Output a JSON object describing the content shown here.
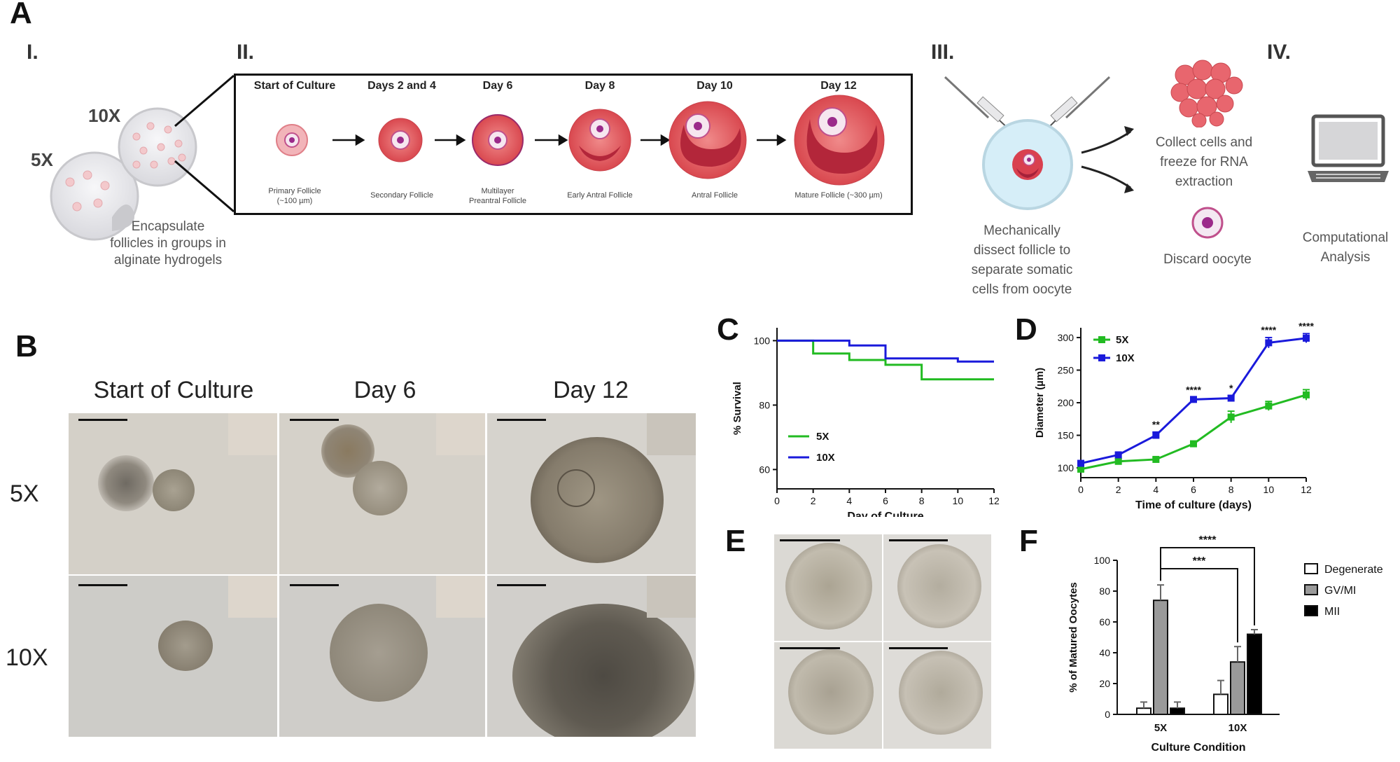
{
  "panels": {
    "A": "A",
    "B": "B",
    "C": "C",
    "D": "D",
    "E": "E",
    "F": "F"
  },
  "section_a": {
    "roman": {
      "i": "I.",
      "ii": "II.",
      "iii": "III.",
      "iv": "IV."
    },
    "dish_labels": {
      "five": "5X",
      "ten": "10X"
    },
    "encapsulate_text": [
      "Encapsulate",
      "follicles in groups in",
      "alginate hydrogels"
    ],
    "stages": [
      {
        "title": "Start of Culture",
        "sub": [
          "Primary Follicle",
          "(~100 µm)"
        ]
      },
      {
        "title": "Days 2 and 4",
        "sub": [
          "Secondary Follicle"
        ]
      },
      {
        "title": "Day 6",
        "sub": [
          "Multilayer",
          "Preantral Follicle"
        ]
      },
      {
        "title": "Day 8",
        "sub": [
          "Early Antral Follicle"
        ]
      },
      {
        "title": "Day 10",
        "sub": [
          "Antral Follicle"
        ]
      },
      {
        "title": "Day 12",
        "sub": [
          "Mature Follicle (~300 µm)"
        ]
      }
    ],
    "dissect_text": [
      "Mechanically",
      "dissect follicle to",
      "separate somatic",
      "cells from oocyte"
    ],
    "collect_text": [
      "Collect cells and",
      "freeze for RNA",
      "extraction"
    ],
    "discard_text": "Discard oocyte",
    "computational_text": [
      "Computational",
      "Analysis"
    ]
  },
  "section_b": {
    "columns": [
      "Start of Culture",
      "Day 6",
      "Day 12"
    ],
    "rows": [
      "5X",
      "10X"
    ]
  },
  "colors": {
    "five_x": "#22bb22",
    "ten_x": "#1a1adb"
  },
  "chart_data": [
    {
      "panel": "C",
      "type": "line",
      "xlabel": "Day of Culture",
      "ylabel": "% Survival",
      "xticks": [
        0,
        2,
        4,
        6,
        8,
        10,
        12
      ],
      "yticks": [
        60,
        80,
        100
      ],
      "xlim": [
        0,
        12
      ],
      "ylim": [
        54,
        104
      ],
      "legend": "bottom-left",
      "series": [
        {
          "name": "5X",
          "steps": [
            [
              0,
              100
            ],
            [
              2,
              96
            ],
            [
              4,
              94
            ],
            [
              6,
              92.5
            ],
            [
              8,
              88
            ],
            [
              10,
              88
            ],
            [
              12,
              88
            ]
          ]
        },
        {
          "name": "10X",
          "steps": [
            [
              0,
              100
            ],
            [
              4,
              98.5
            ],
            [
              6,
              94.5
            ],
            [
              10,
              93.5
            ],
            [
              12,
              93.5
            ]
          ]
        }
      ]
    },
    {
      "panel": "D",
      "type": "line",
      "xlabel": "Time of culture (days)",
      "ylabel": "Diameter (µm)",
      "xticks": [
        0,
        2,
        4,
        6,
        8,
        10,
        12
      ],
      "yticks": [
        100,
        150,
        200,
        250,
        300
      ],
      "xlim": [
        0,
        12
      ],
      "ylim": [
        85,
        315
      ],
      "legend": "top-left",
      "x": [
        0,
        2,
        4,
        6,
        8,
        10,
        12
      ],
      "series": [
        {
          "name": "5X",
          "values": [
            98,
            110,
            113,
            137,
            178,
            195,
            212
          ],
          "errors": [
            3,
            4,
            3,
            4,
            9,
            7,
            8
          ]
        },
        {
          "name": "10X",
          "values": [
            107,
            120,
            150,
            205,
            207,
            292,
            299
          ],
          "errors": [
            3,
            3,
            5,
            3,
            4,
            8,
            7
          ]
        }
      ],
      "annotations": [
        {
          "x": 4,
          "label": "**"
        },
        {
          "x": 6,
          "label": "****"
        },
        {
          "x": 8,
          "label": "*"
        },
        {
          "x": 10,
          "label": "****"
        },
        {
          "x": 12,
          "label": "****"
        }
      ]
    },
    {
      "panel": "F",
      "type": "bar",
      "xlabel": "Culture Condition",
      "ylabel": "% of Matured Oocytes",
      "categories": [
        "5X",
        "10X"
      ],
      "yticks": [
        0,
        20,
        40,
        60,
        80,
        100
      ],
      "ylim": [
        0,
        100
      ],
      "legend": "right",
      "series": [
        {
          "name": "Degenerate",
          "values": [
            4,
            13
          ],
          "errors": [
            4,
            9
          ],
          "fill": "#ffffff"
        },
        {
          "name": "GV/MI",
          "values": [
            74,
            34
          ],
          "errors": [
            10,
            10
          ],
          "fill": "#9a9a9a"
        },
        {
          "name": "MII",
          "values": [
            4,
            52
          ],
          "errors": [
            4,
            3
          ],
          "fill": "#000000"
        }
      ],
      "significance": [
        {
          "label": "***"
        },
        {
          "label": "****"
        }
      ]
    }
  ]
}
